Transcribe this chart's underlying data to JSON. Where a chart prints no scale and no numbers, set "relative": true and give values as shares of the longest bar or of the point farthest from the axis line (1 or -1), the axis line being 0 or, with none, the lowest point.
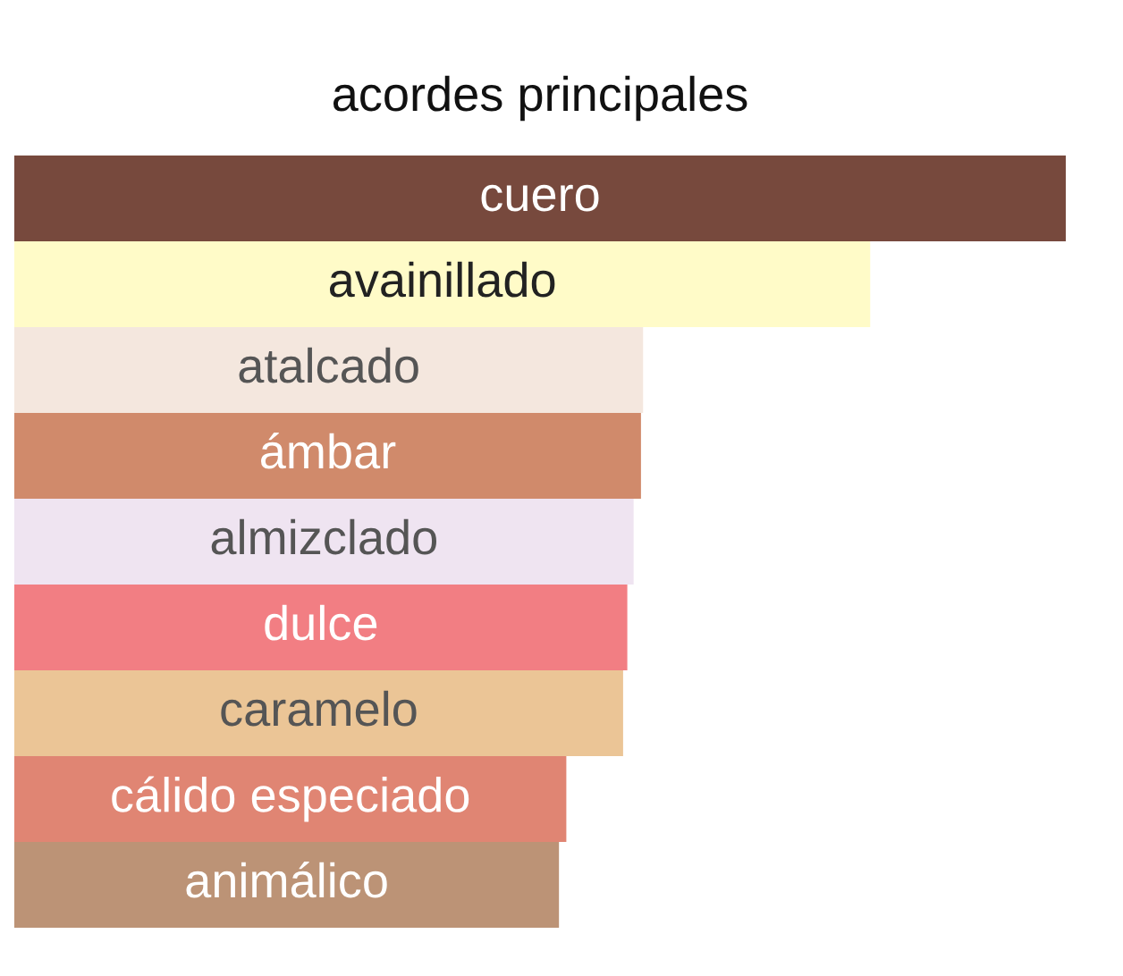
{
  "chart_data": {
    "type": "bar",
    "orientation": "horizontal",
    "relative": true,
    "title": "acordes principales",
    "categories": [
      "cuero",
      "avainillado",
      "atalcado",
      "ámbar",
      "almizclado",
      "dulce",
      "caramelo",
      "cálido especiado",
      "animálico"
    ],
    "values": [
      1,
      0.814,
      0.598,
      0.596,
      0.589,
      0.583,
      0.579,
      0.525,
      0.518
    ],
    "colors": [
      "#77493d",
      "#fffbc8",
      "#f4e7de",
      "#d08a6b",
      "#efe4f1",
      "#f27e83",
      "#ebc596",
      "#e08573",
      "#bc9376"
    ]
  }
}
